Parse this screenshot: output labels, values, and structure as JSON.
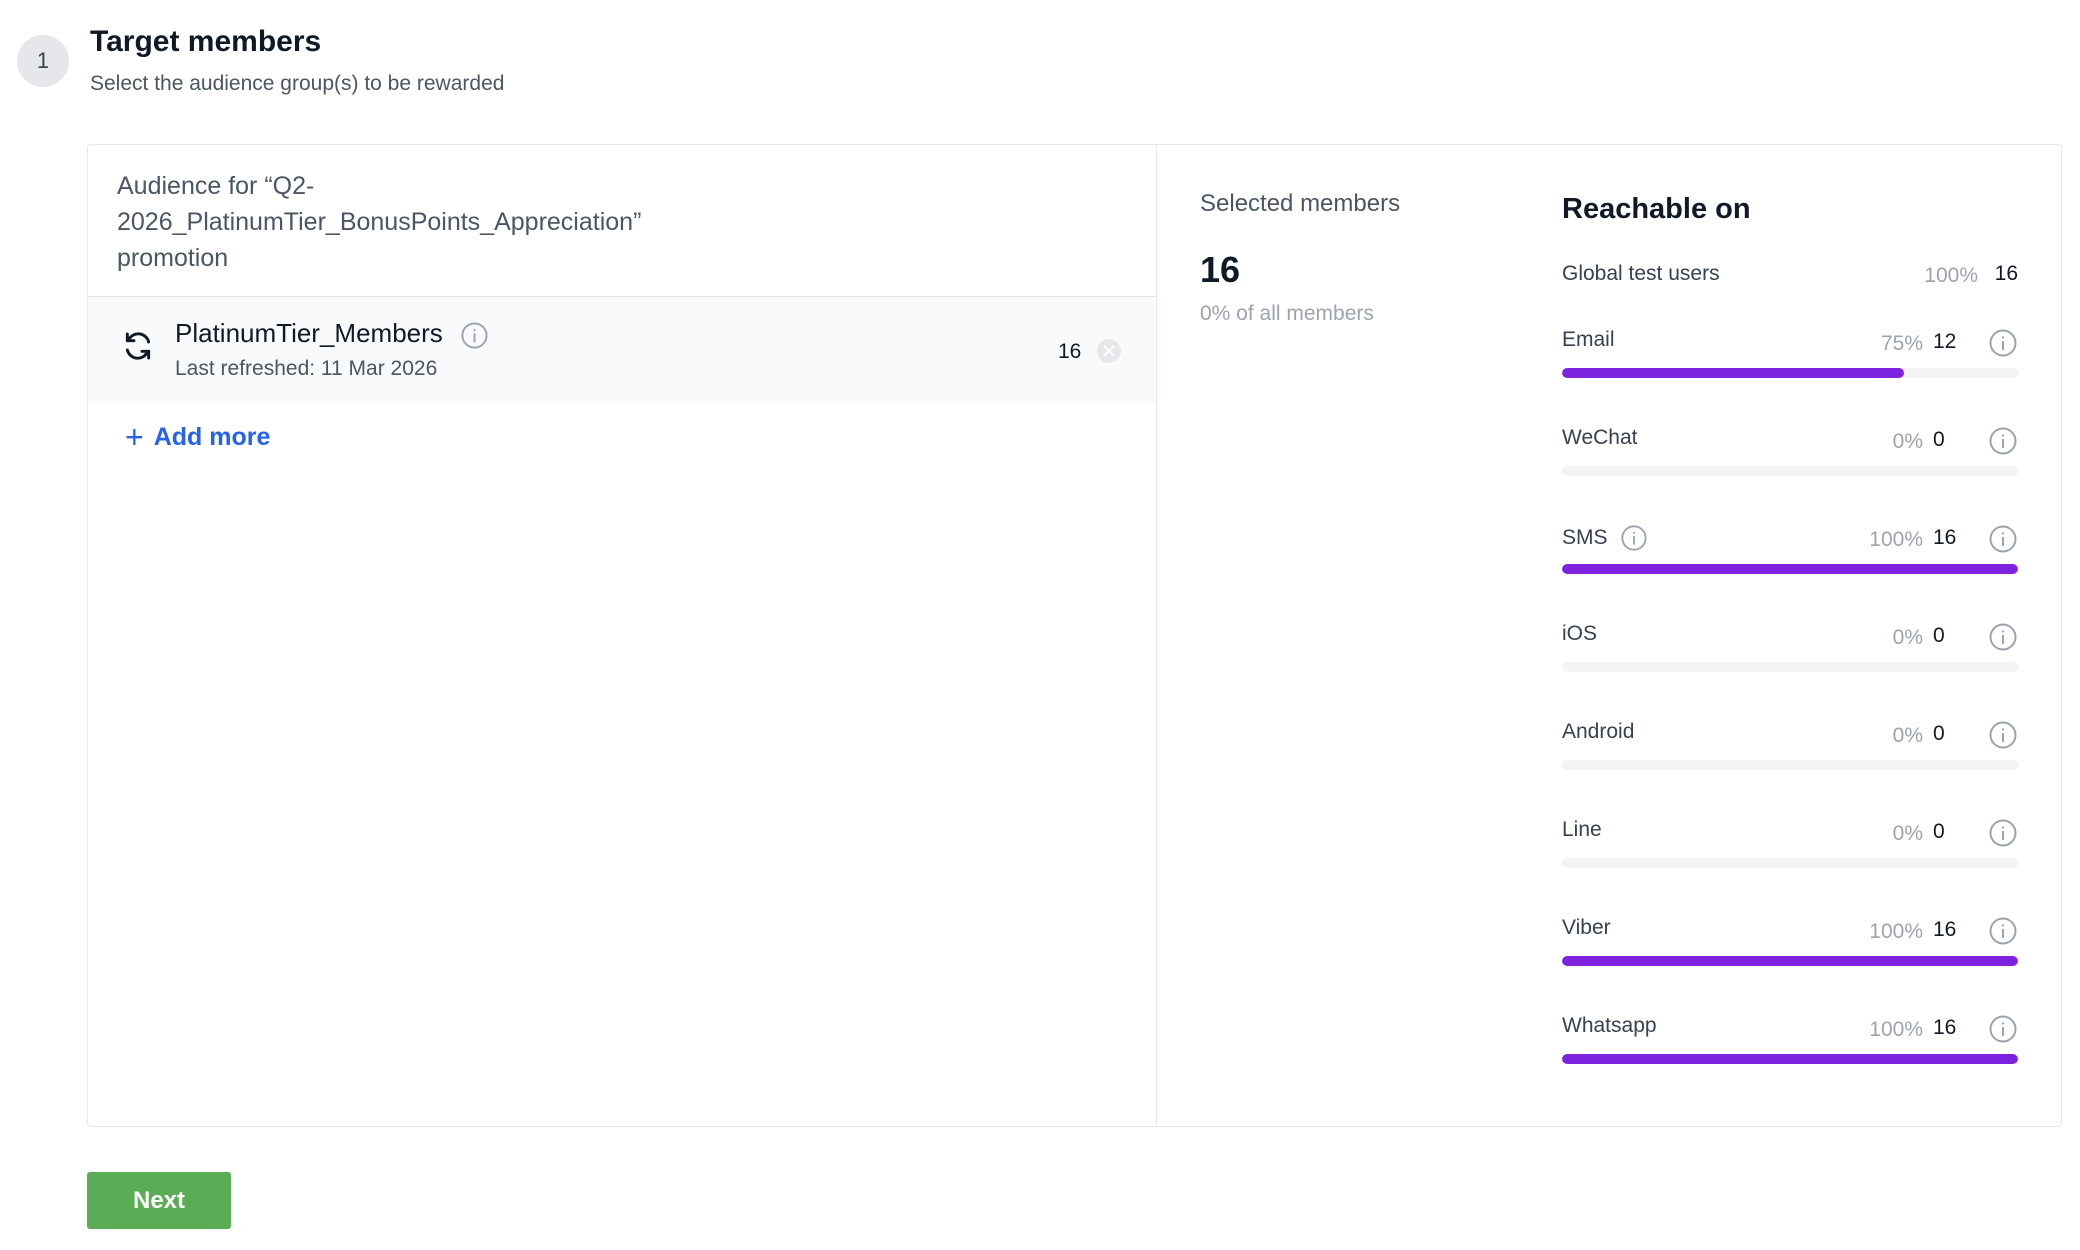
{
  "step": {
    "number": "1",
    "title": "Target members",
    "subtitle": "Select the audience group(s) to be rewarded"
  },
  "audience": {
    "title": "Audience for “Q2-2026_PlatinumTier_BonusPoints_Appreciation” promotion",
    "items": [
      {
        "name": "PlatinumTier_Members",
        "last_refreshed": "Last refreshed: 11 Mar 2026",
        "count": "16"
      }
    ],
    "add_more_label": "Add more"
  },
  "selected": {
    "label": "Selected members",
    "count": "16",
    "percent_text": "0% of all members"
  },
  "reachable": {
    "title": "Reachable on",
    "global": {
      "name": "Global test users",
      "percent": "100%",
      "count": "16"
    },
    "channels": [
      {
        "name": "Email",
        "percent": "75%",
        "count": "12",
        "fill": 0.75,
        "has_name_info": false
      },
      {
        "name": "WeChat",
        "percent": "0%",
        "count": "0",
        "fill": 0,
        "has_name_info": false
      },
      {
        "name": "SMS",
        "percent": "100%",
        "count": "16",
        "fill": 1,
        "has_name_info": true
      },
      {
        "name": "iOS",
        "percent": "0%",
        "count": "0",
        "fill": 0,
        "has_name_info": false
      },
      {
        "name": "Android",
        "percent": "0%",
        "count": "0",
        "fill": 0,
        "has_name_info": false
      },
      {
        "name": "Line",
        "percent": "0%",
        "count": "0",
        "fill": 0,
        "has_name_info": false
      },
      {
        "name": "Viber",
        "percent": "100%",
        "count": "16",
        "fill": 1,
        "has_name_info": false
      },
      {
        "name": "Whatsapp",
        "percent": "100%",
        "count": "16",
        "fill": 1,
        "has_name_info": false
      }
    ]
  },
  "colors": {
    "bar_fill": "#7c22e0",
    "bar_track": "#f3f4f6",
    "link": "#2563eb",
    "next_button": "#5aac55"
  },
  "icons": {
    "refresh": "refresh-icon",
    "info": "info-icon",
    "remove": "remove-circle-icon",
    "plus": "plus-icon"
  },
  "actions": {
    "next_label": "Next"
  }
}
